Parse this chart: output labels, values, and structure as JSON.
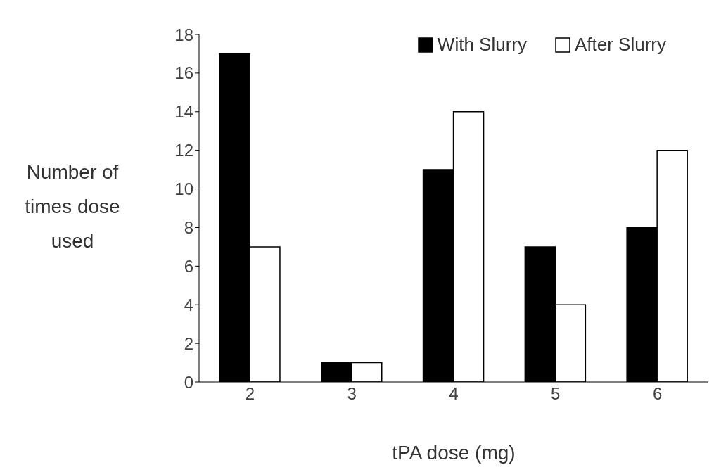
{
  "chart_data": {
    "type": "bar",
    "xlabel": "tPA dose (mg)",
    "ylabel": "Number of times dose used",
    "categories": [
      "2",
      "3",
      "4",
      "5",
      "6"
    ],
    "series": [
      {
        "name": "With Slurry",
        "color": "#000000",
        "values": [
          17,
          1,
          11,
          7,
          8
        ]
      },
      {
        "name": "After Slurry",
        "color": "#ffffff",
        "values": [
          7,
          1,
          14,
          4,
          12
        ]
      }
    ],
    "ylim": [
      0,
      18
    ],
    "yticks": [
      0,
      2,
      4,
      6,
      8,
      10,
      12,
      14,
      16,
      18
    ],
    "grid": false,
    "legend": "top right"
  }
}
